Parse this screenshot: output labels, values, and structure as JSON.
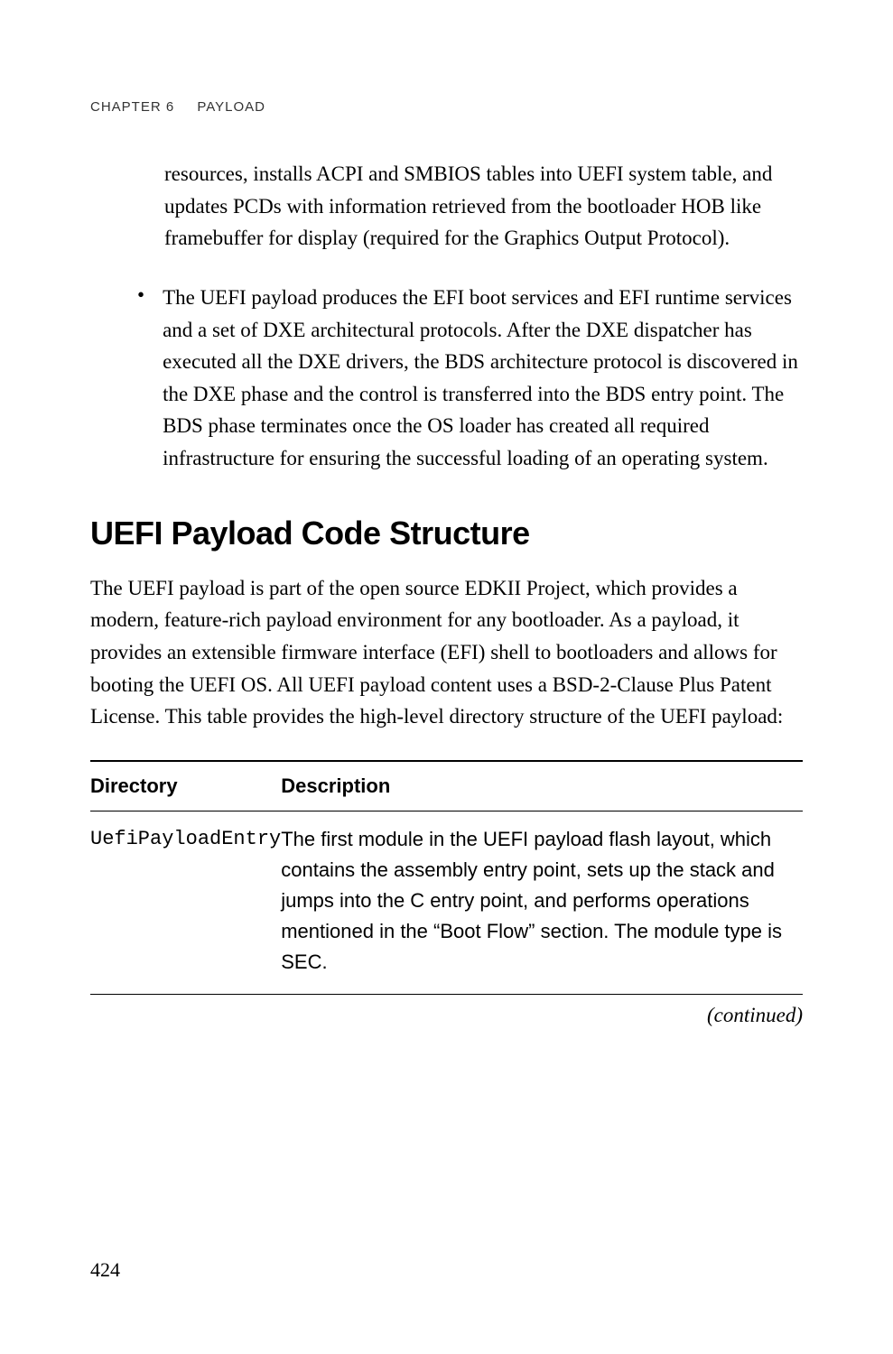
{
  "header": {
    "chapter_label": "CHAPTER 6",
    "chapter_title": "PAYLOAD"
  },
  "para1": "resources, installs ACPI and SMBIOS tables into UEFI system table, and updates PCDs with information retrieved from the bootloader HOB like framebuffer for display (required for the Graphics Output Protocol).",
  "bullet1": "The UEFI payload produces the EFI boot services and EFI runtime services and a set of DXE architectural protocols. After the DXE dispatcher has executed all the DXE drivers, the BDS architecture protocol is discovered in the DXE phase and the control is transferred into the BDS entry point. The BDS phase terminates once the OS loader has created all required infrastructure for ensuring the successful loading of an operating system.",
  "heading": "UEFI Payload Code Structure",
  "section_para": "The UEFI payload is part of the open source EDKII Project, which provides a modern, feature-rich payload environment for any bootloader. As a payload, it provides an extensible firmware interface (EFI) shell to bootloaders and allows for booting the UEFI OS. All UEFI payload content uses a BSD-2-Clause Plus Patent License. This table provides the high-level directory structure of the UEFI payload:",
  "table": {
    "columns": [
      "Directory",
      "Description"
    ],
    "rows": [
      {
        "directory": "UefiPayloadEntry",
        "description": "The first module in the UEFI payload flash layout, which contains the assembly entry point, sets up the stack and jumps into the C entry point, and performs operations mentioned in the “Boot Flow” section. The module type is SEC."
      }
    ]
  },
  "continued_label": "(continued)",
  "page_number": "424",
  "style": {
    "body_fontsize": 23,
    "heading_fontsize": 36,
    "header_fontsize": 15,
    "table_fontsize": 22,
    "mono_fontsize": 21,
    "text_color": "#000000",
    "background_color": "#ffffff",
    "border_color": "#000000",
    "line_height": 1.55
  }
}
